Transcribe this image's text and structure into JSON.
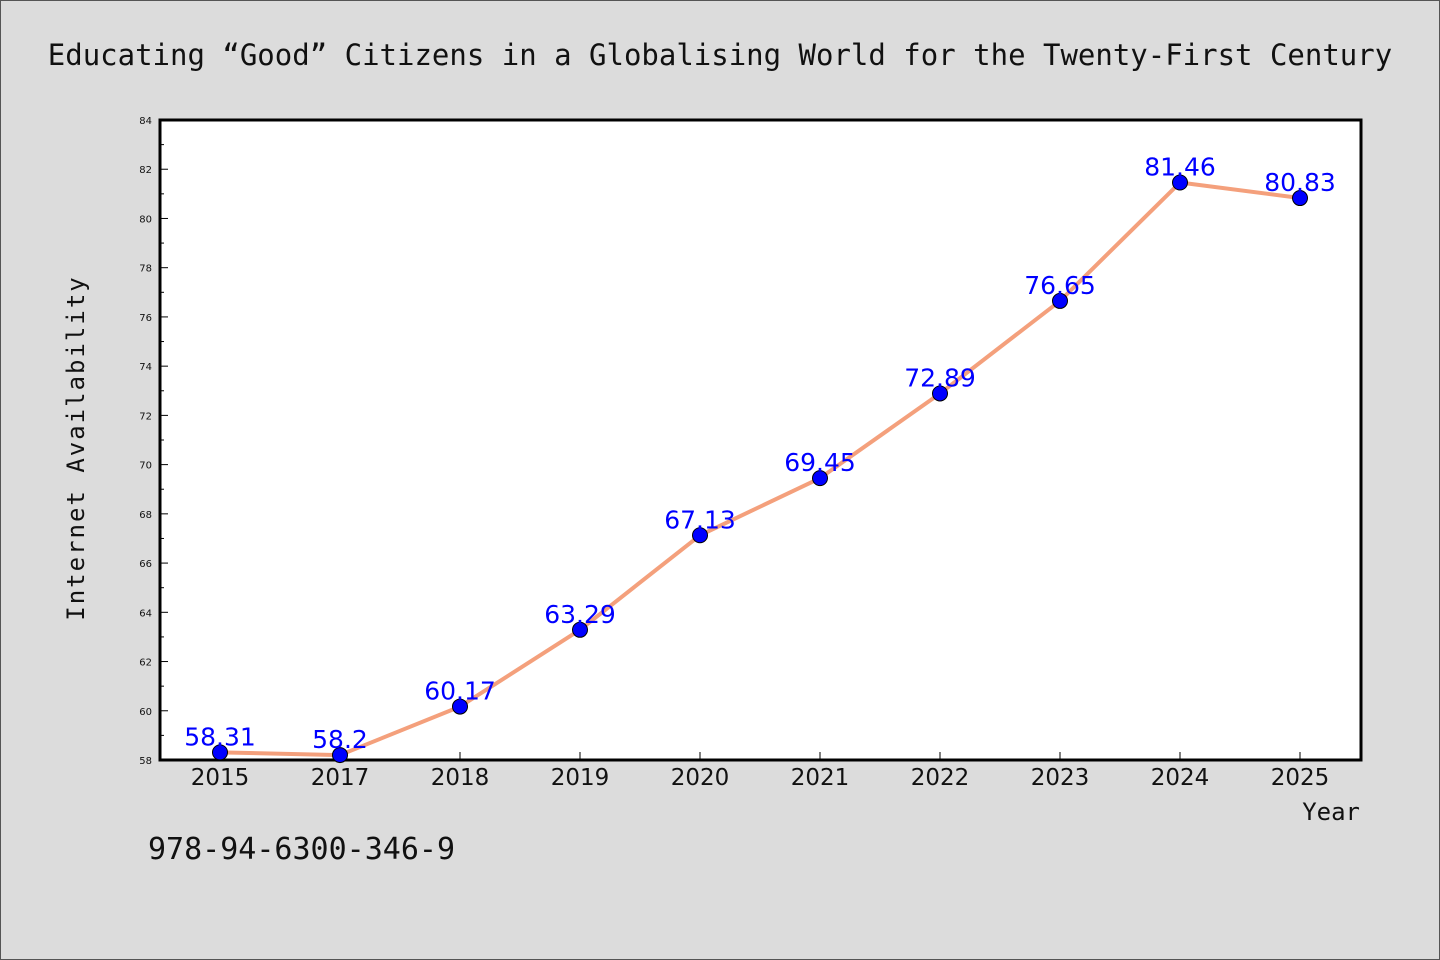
{
  "page": {
    "isbn": "978-94-6300-346-9"
  },
  "chart_data": {
    "type": "line",
    "title": "Educating “Good” Citizens in a Globalising World for the Twenty-First Century",
    "xlabel": "Year",
    "ylabel": "Internet Availability",
    "categories": [
      "2015",
      "2017",
      "2018",
      "2019",
      "2020",
      "2021",
      "2022",
      "2023",
      "2024",
      "2025"
    ],
    "series": [
      {
        "values": [
          58.31,
          58.2,
          60.17,
          63.29,
          67.13,
          69.45,
          72.89,
          76.65,
          81.46,
          80.83
        ],
        "labels": [
          "58.31",
          "58.2",
          "60.17",
          "63.29",
          "67.13",
          "69.45",
          "72.89",
          "76.65",
          "81.46",
          "80.83"
        ]
      }
    ],
    "ylim": [
      58,
      84
    ],
    "yticks": [
      58,
      60,
      62,
      64,
      66,
      68,
      70,
      72,
      74,
      76,
      78,
      80,
      82,
      84
    ],
    "grid": false,
    "legend": "none",
    "colors": {
      "line": "#f4a07c",
      "marker": "#0000ff",
      "data_label": "#0000ff",
      "plot_background": "#ffffff",
      "page_background": "#dcdcdc"
    }
  }
}
